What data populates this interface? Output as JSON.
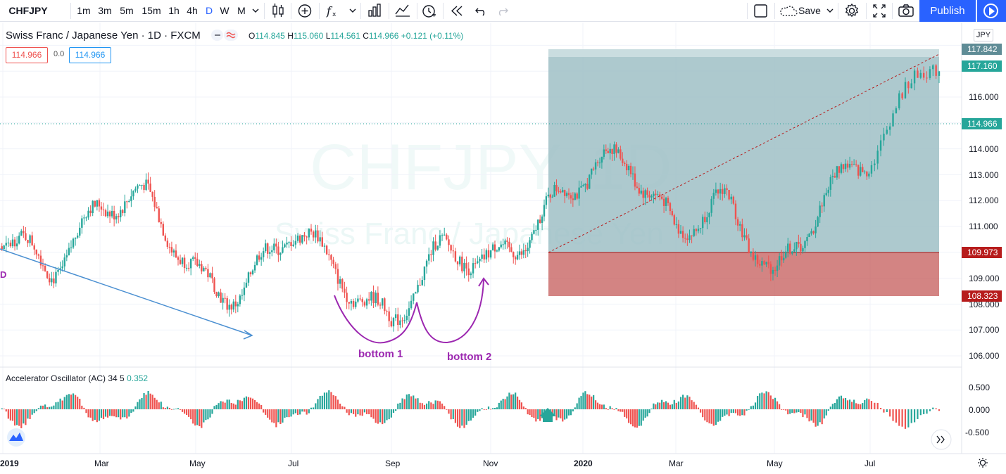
{
  "toolbar": {
    "symbol": "CHFJPY",
    "intervals": [
      "1m",
      "3m",
      "5m",
      "15m",
      "1h",
      "4h",
      "D",
      "W",
      "M"
    ],
    "active_interval": "D",
    "save_label": "Save",
    "publish_label": "Publish"
  },
  "legend": {
    "title": "Swiss Franc / Japanese Yen · 1D · FXCM",
    "open_label": "O",
    "open": "114.845",
    "high_label": "H",
    "high": "115.060",
    "low_label": "L",
    "low": "114.561",
    "close_label": "C",
    "close": "114.966",
    "change": "+0.121 (+0.11%)",
    "sell_price": "114.966",
    "spread": "0.0",
    "buy_price": "114.966"
  },
  "watermark": {
    "symbol": "CHFJPY, 1D",
    "name": "Swiss Franc / Japanese Yen"
  },
  "price_axis": {
    "currency": "JPY",
    "ticks": [
      "106.000",
      "107.000",
      "108.000",
      "109.000",
      "110.000",
      "111.000",
      "112.000",
      "113.000",
      "114.000",
      "115.000",
      "116.000",
      "117.000"
    ],
    "tags": [
      {
        "value": "117.842",
        "color": "#5f8c96"
      },
      {
        "value": "117.160",
        "color": "#26a69a"
      },
      {
        "value": "114.966",
        "color": "#26a69a"
      },
      {
        "value": "109.973",
        "color": "#b71c1c"
      },
      {
        "value": "108.323",
        "color": "#b71c1c"
      }
    ]
  },
  "time_axis": [
    {
      "label": "2019",
      "bold": true
    },
    {
      "label": "Mar",
      "bold": false
    },
    {
      "label": "May",
      "bold": false
    },
    {
      "label": "Jul",
      "bold": false
    },
    {
      "label": "Sep",
      "bold": false
    },
    {
      "label": "Nov",
      "bold": false
    },
    {
      "label": "2020",
      "bold": true
    },
    {
      "label": "Mar",
      "bold": false
    },
    {
      "label": "May",
      "bold": false
    },
    {
      "label": "Jul",
      "bold": false
    }
  ],
  "annotations": {
    "bottom1": "bottom 1",
    "bottom2": "bottom 2"
  },
  "indicator": {
    "name": "Accelerator Oscillator (AC)",
    "params": "34 5",
    "value": "0.352",
    "ticks": [
      "0.500",
      "0.000",
      "-0.500"
    ]
  },
  "colors": {
    "up": "#26a69a",
    "down": "#ef5350",
    "accent": "#2962ff",
    "drawing": "#9c27b0"
  },
  "chart_data": {
    "type": "candlestick",
    "title": "Swiss Franc / Japanese Yen · 1D · FXCM",
    "ylim": [
      105.5,
      118.2
    ],
    "x_range": [
      "2018-12",
      "2020-08"
    ],
    "close_path": [
      [
        "2018-12",
        112.6
      ],
      [
        "2019-01",
        110.2
      ],
      [
        "2019-02",
        109.8
      ],
      [
        "2019-03",
        111.9
      ],
      [
        "2019-04",
        111.6
      ],
      [
        "2019-05",
        109.4
      ],
      [
        "2019-06",
        108.6
      ],
      [
        "2019-07",
        110.5
      ],
      [
        "2019-08",
        109.4
      ],
      [
        "2019-09",
        107.5
      ],
      [
        "2019-10",
        109.6
      ],
      [
        "2019-11",
        109.8
      ],
      [
        "2019-12",
        111.4
      ],
      [
        "2020-01",
        112.5
      ],
      [
        "2020-02",
        113.8
      ],
      [
        "2020-03",
        111.2
      ],
      [
        "2020-04",
        111.5
      ],
      [
        "2020-05",
        109.0
      ],
      [
        "2020-06",
        112.5
      ],
      [
        "2020-07",
        113.4
      ],
      [
        "2020-08",
        117.4
      ]
    ],
    "indicator_ylim": [
      -0.7,
      0.8
    ],
    "position": {
      "entry": "109.973",
      "target": "117.842",
      "stop": "108.323"
    }
  }
}
